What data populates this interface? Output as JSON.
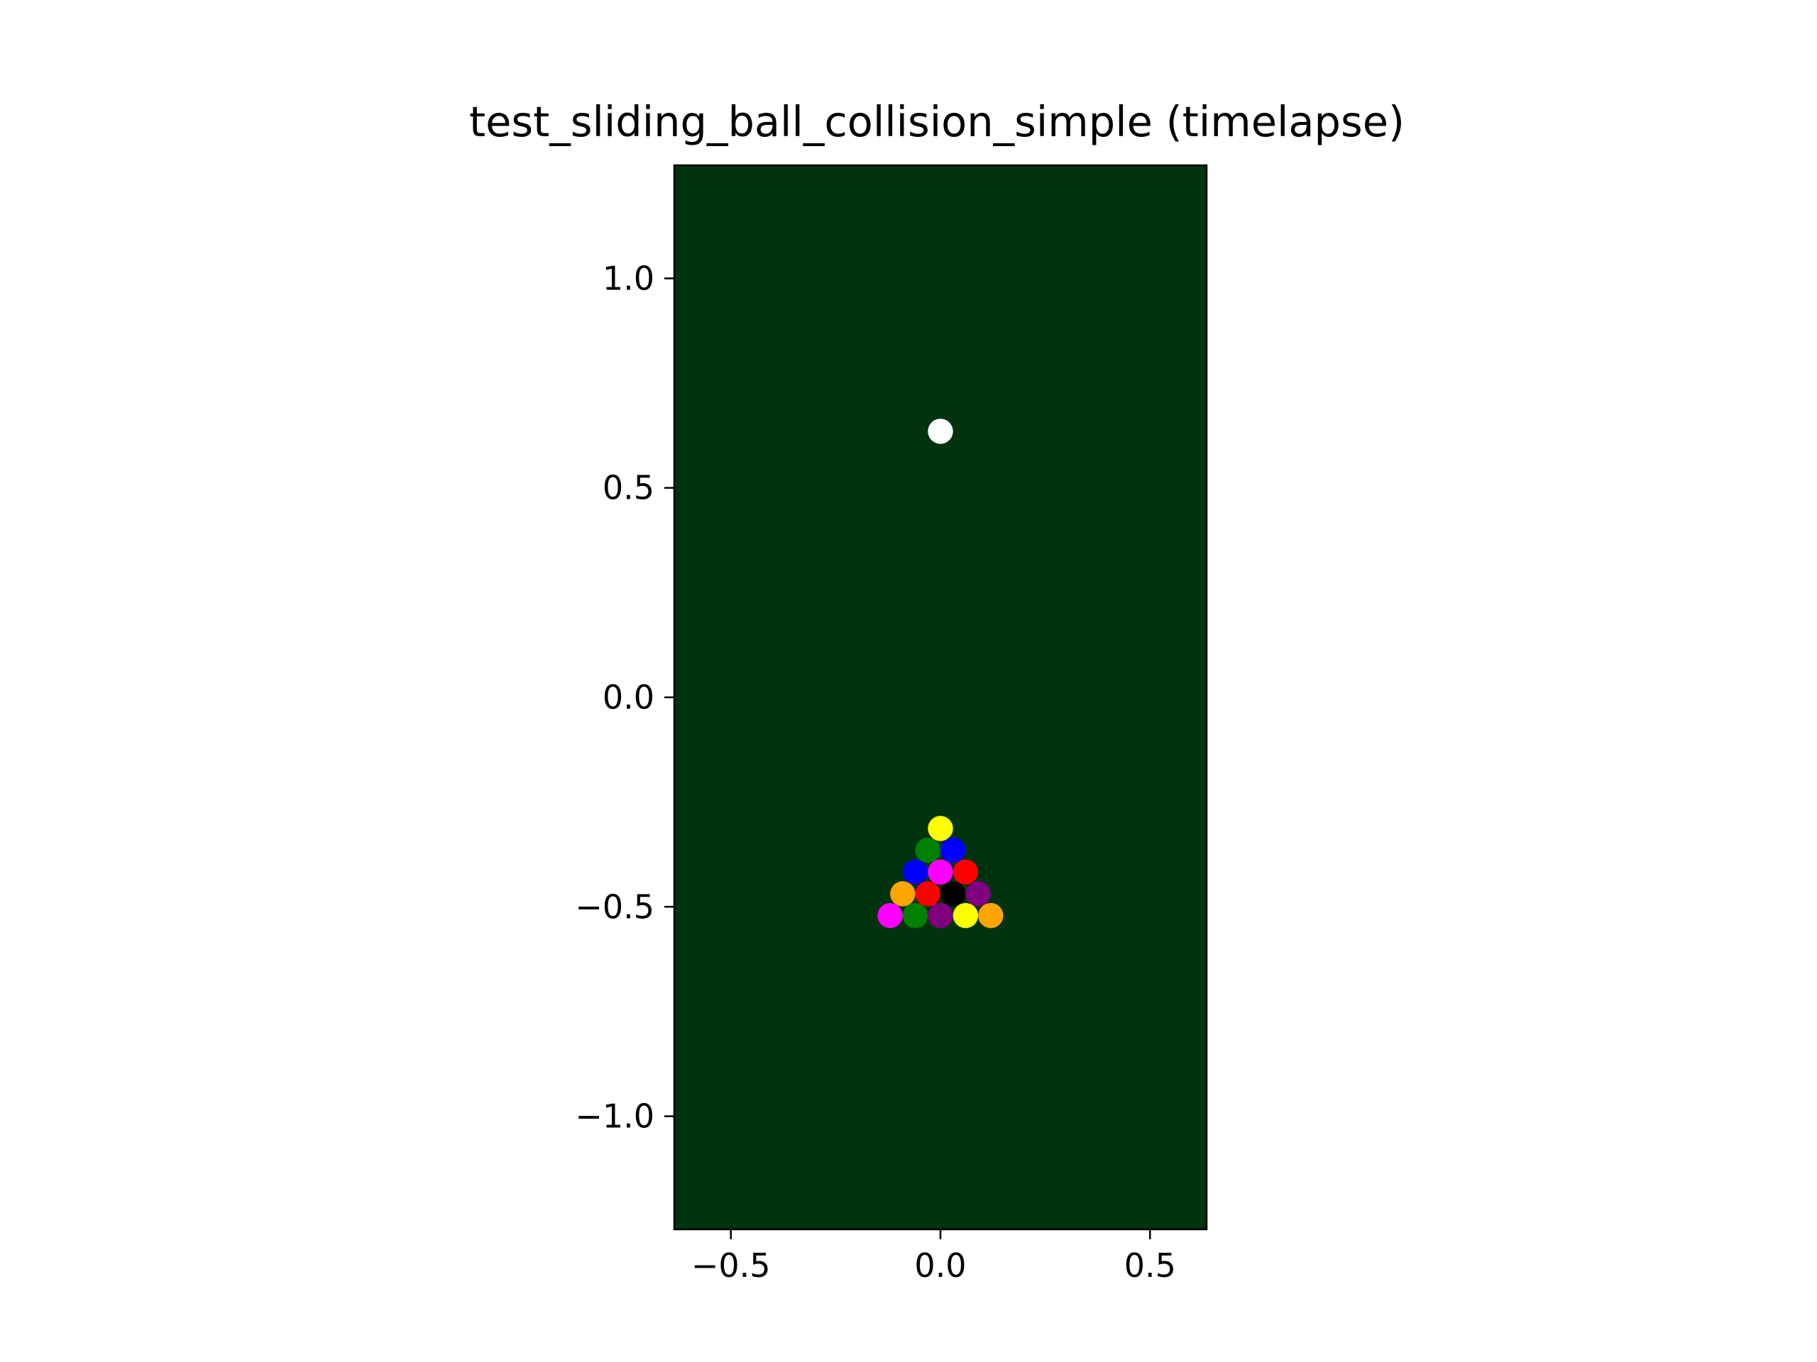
{
  "chart_data": {
    "type": "scatter",
    "title": "test_sliding_ball_collision_simple (timelapse)",
    "xlabel": "",
    "ylabel": "",
    "xlim": [
      -0.635,
      0.635
    ],
    "ylim": [
      -1.27,
      1.27
    ],
    "xticks": [
      -0.5,
      0.0,
      0.5
    ],
    "xtick_labels": [
      "−0.5",
      "0.0",
      "0.5"
    ],
    "yticks": [
      -1.0,
      -0.5,
      0.0,
      0.5,
      1.0
    ],
    "ytick_labels": [
      "−1.0",
      "−0.5",
      "0.0",
      "0.5",
      "1.0"
    ],
    "grid": false,
    "background_color": "#02330f",
    "ball_radius": 0.03,
    "points": [
      {
        "x": 0.0,
        "y": 0.635,
        "color": "#ffffff"
      },
      {
        "x": 0.0,
        "y": -0.313,
        "color": "#ffff00"
      },
      {
        "x": -0.03,
        "y": -0.365,
        "color": "#008000"
      },
      {
        "x": 0.03,
        "y": -0.365,
        "color": "#0000ff"
      },
      {
        "x": -0.06,
        "y": -0.417,
        "color": "#0000ff"
      },
      {
        "x": 0.0,
        "y": -0.417,
        "color": "#ff00ff"
      },
      {
        "x": 0.06,
        "y": -0.417,
        "color": "#ff0000"
      },
      {
        "x": -0.09,
        "y": -0.469,
        "color": "#ffa500"
      },
      {
        "x": -0.03,
        "y": -0.469,
        "color": "#ff0000"
      },
      {
        "x": 0.03,
        "y": -0.469,
        "color": "#000000"
      },
      {
        "x": 0.09,
        "y": -0.469,
        "color": "#800080"
      },
      {
        "x": -0.12,
        "y": -0.521,
        "color": "#ff00ff"
      },
      {
        "x": -0.06,
        "y": -0.521,
        "color": "#008000"
      },
      {
        "x": 0.0,
        "y": -0.521,
        "color": "#800080"
      },
      {
        "x": 0.06,
        "y": -0.521,
        "color": "#ffff00"
      },
      {
        "x": 0.12,
        "y": -0.521,
        "color": "#ffa500"
      }
    ]
  }
}
